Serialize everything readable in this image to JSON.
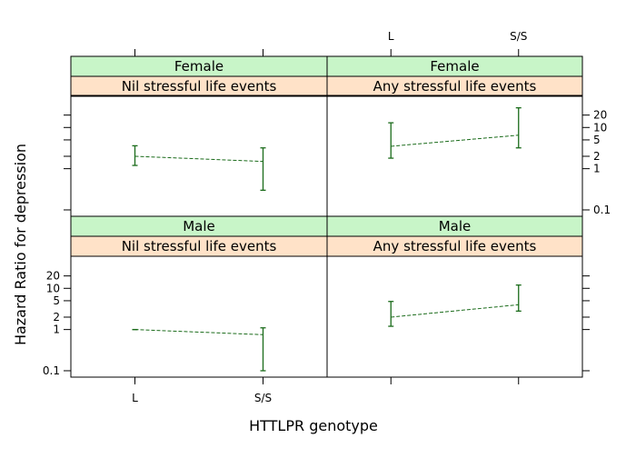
{
  "chart_data": {
    "type": "scatter",
    "xlabel": "HTTLPR genotype",
    "ylabel": "Hazard Ratio for depression",
    "x_categories": [
      "L",
      "S/S"
    ],
    "y_scale": "log",
    "y_ticks": [
      0.1,
      1,
      2,
      5,
      10,
      20
    ],
    "y_tick_labels": [
      "0.1",
      "1",
      "2",
      "5",
      "10",
      "20"
    ],
    "ylim": [
      0.07,
      60
    ],
    "colors": {
      "series": "#1a6b1a",
      "sex_strip": "#c8f5c8",
      "condition_strip": "#ffe2c8"
    },
    "panels": [
      {
        "sex": "Female",
        "condition": "Nil stressful life events",
        "points": [
          {
            "x": "L",
            "estimate": 2.0,
            "lower": 1.2,
            "upper": 3.6
          },
          {
            "x": "S/S",
            "estimate": 1.5,
            "lower": 0.3,
            "upper": 3.2
          }
        ]
      },
      {
        "sex": "Female",
        "condition": "Any stressful life events",
        "points": [
          {
            "x": "L",
            "estimate": 3.5,
            "lower": 1.8,
            "upper": 13.0
          },
          {
            "x": "S/S",
            "estimate": 6.5,
            "lower": 3.2,
            "upper": 30.0
          }
        ]
      },
      {
        "sex": "Male",
        "condition": "Nil stressful life events",
        "points": [
          {
            "x": "L",
            "estimate": 1.0,
            "lower": 1.0,
            "upper": 1.0
          },
          {
            "x": "S/S",
            "estimate": 0.75,
            "lower": 0.1,
            "upper": 1.1
          }
        ]
      },
      {
        "sex": "Male",
        "condition": "Any stressful life events",
        "points": [
          {
            "x": "L",
            "estimate": 2.0,
            "lower": 1.2,
            "upper": 4.8
          },
          {
            "x": "S/S",
            "estimate": 4.0,
            "lower": 2.8,
            "upper": 12.0
          }
        ]
      }
    ]
  }
}
